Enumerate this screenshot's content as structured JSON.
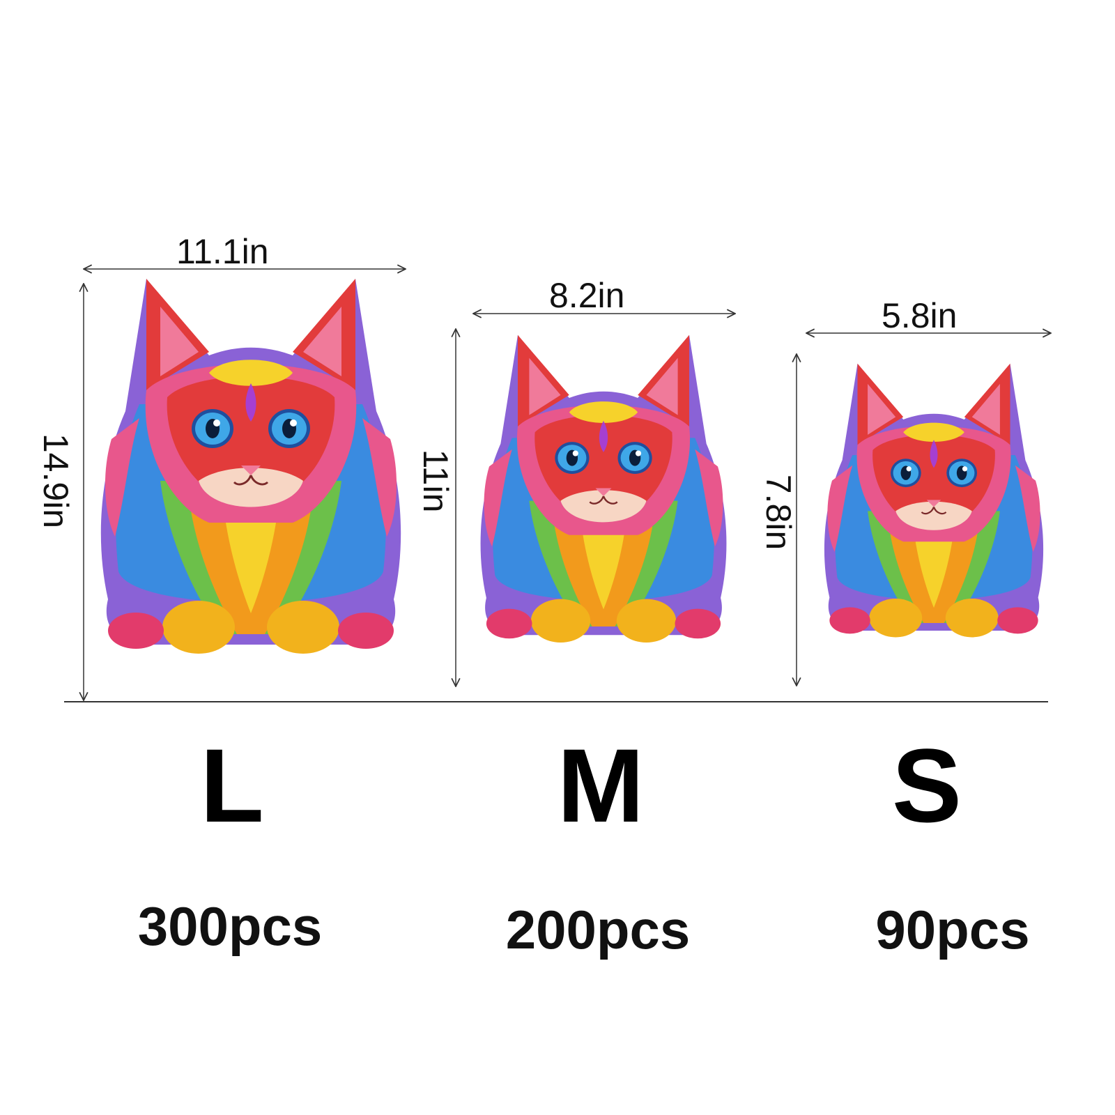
{
  "sizes": [
    {
      "letter": "L",
      "pieces": "300pcs",
      "width": "11.1in",
      "height": "14.9in"
    },
    {
      "letter": "M",
      "pieces": "200pcs",
      "width": "8.2in",
      "height": "11in"
    },
    {
      "letter": "S",
      "pieces": "90pcs",
      "width": "5.8in",
      "height": "7.8in"
    }
  ],
  "illustration": {
    "subject": "colorful-cat-puzzle",
    "colors": {
      "pink": "#e8578c",
      "red": "#e23b3b",
      "orange": "#f29a1c",
      "yellow": "#f6d22b",
      "blue": "#3a8be0",
      "purple": "#8a62d6",
      "green": "#6cc04a",
      "eye": "#3fa7e8"
    }
  }
}
